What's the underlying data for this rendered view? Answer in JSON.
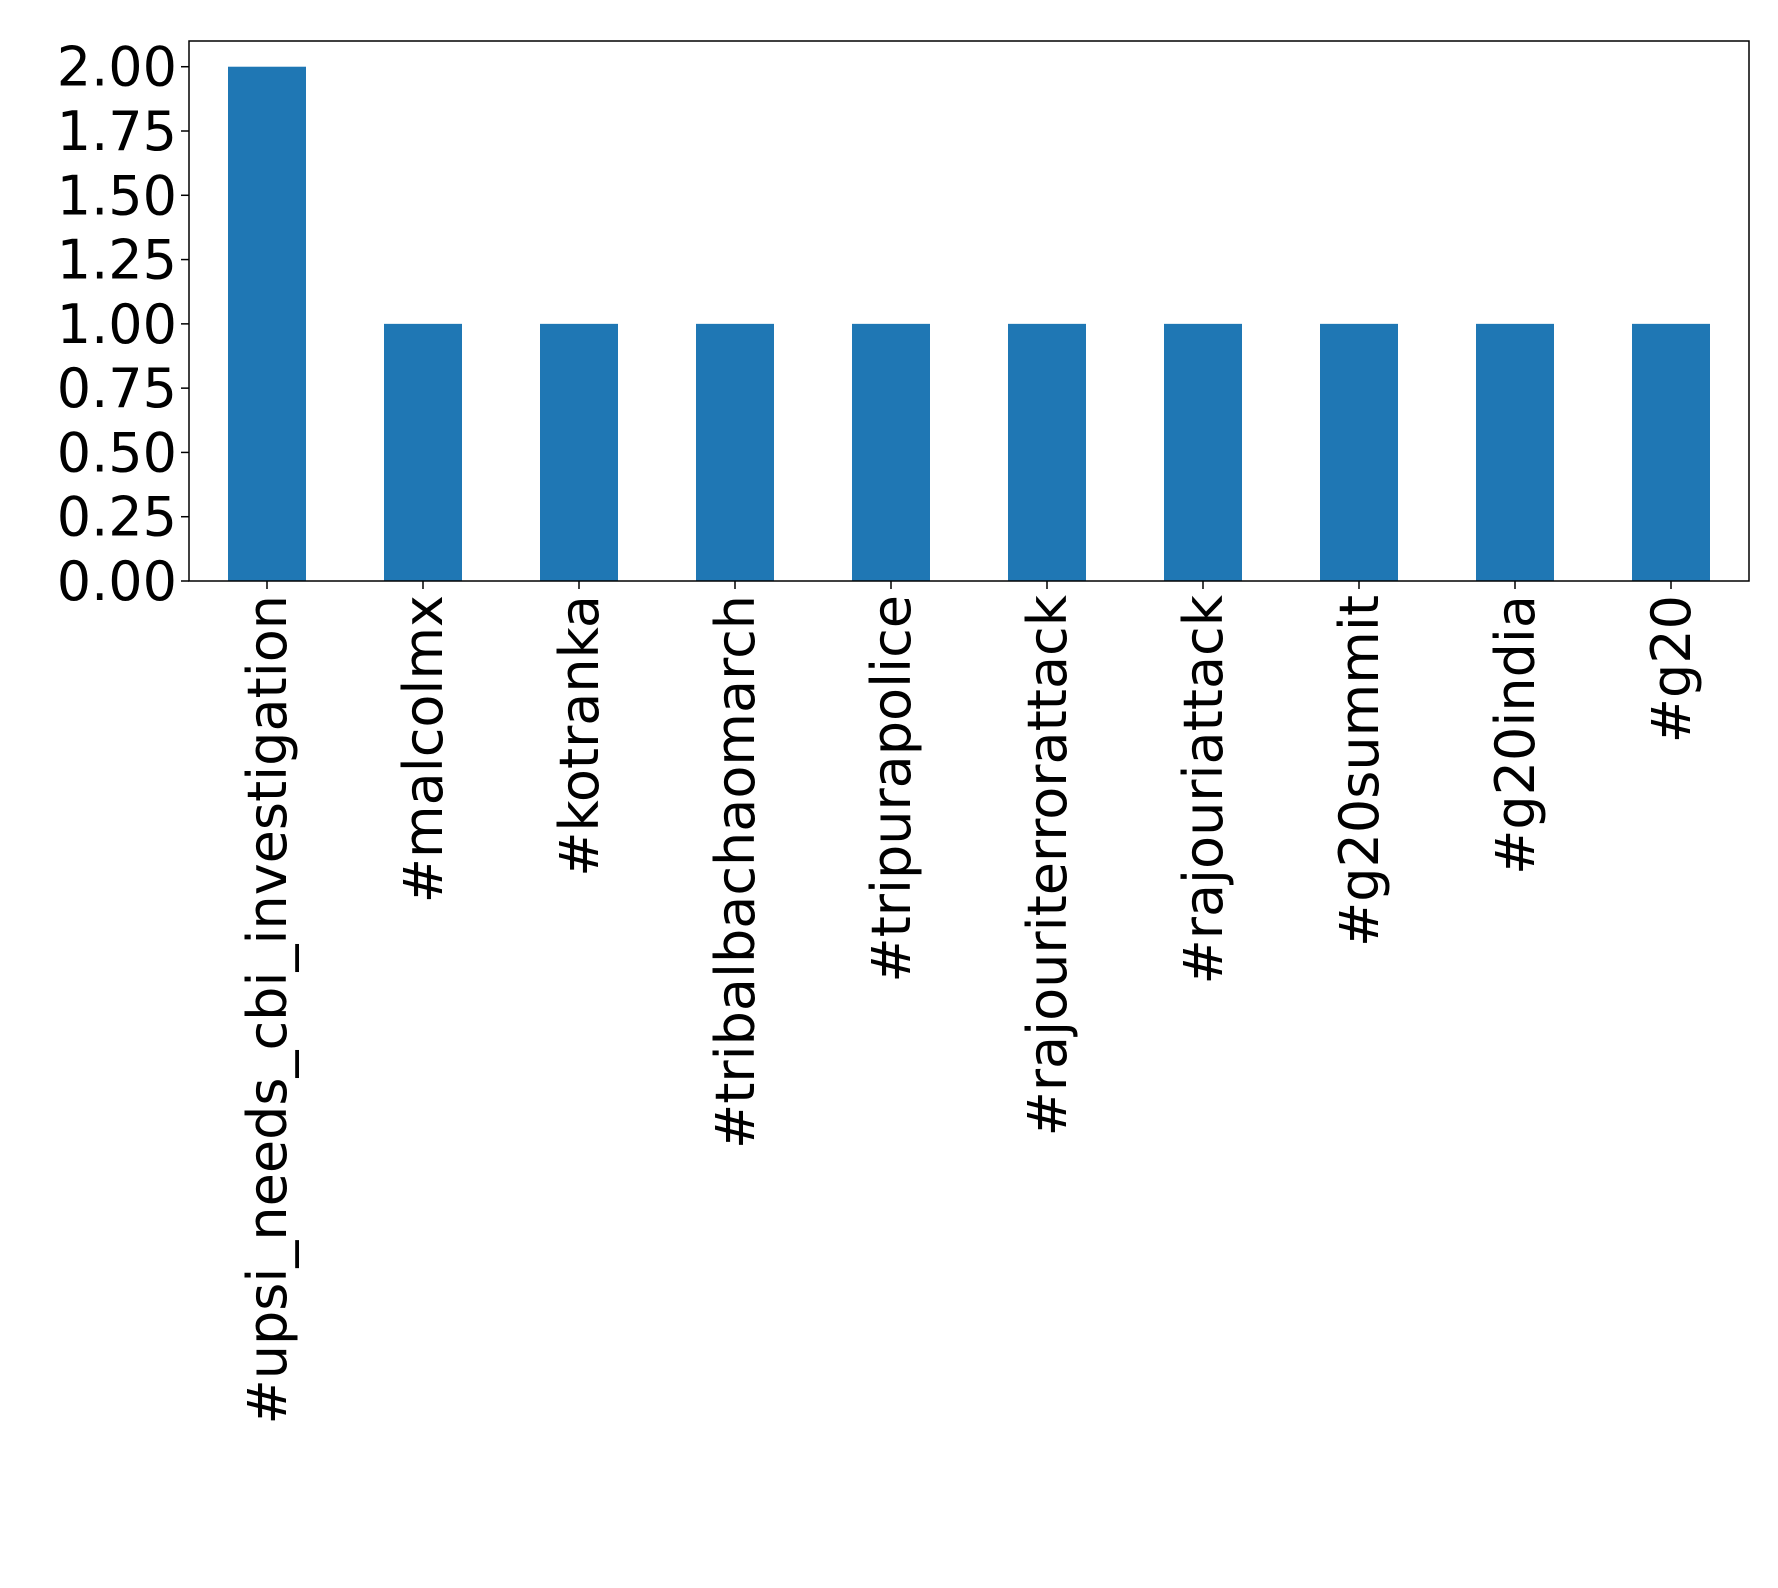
{
  "chart_data": {
    "type": "bar",
    "categories": [
      "#upsi_needs_cbi_investigation",
      "#malcolmx",
      "#kotranka",
      "#tribalbachaomarch",
      "#tripurapolice",
      "#rajouriterrorattack",
      "#rajouriattack",
      "#g20summit",
      "#g20india",
      "#g20"
    ],
    "values": [
      2,
      1,
      1,
      1,
      1,
      1,
      1,
      1,
      1,
      1
    ],
    "color": "#1f77b4",
    "ylim": [
      0,
      2.1
    ],
    "yticks": [
      {
        "value": 0,
        "label": "0.00"
      },
      {
        "value": 0.25,
        "label": "0.25"
      },
      {
        "value": 0.5,
        "label": "0.50"
      },
      {
        "value": 0.75,
        "label": "0.75"
      },
      {
        "value": 1,
        "label": "1.00"
      },
      {
        "value": 1.25,
        "label": "1.25"
      },
      {
        "value": 1.5,
        "label": "1.50"
      },
      {
        "value": 1.75,
        "label": "1.75"
      },
      {
        "value": 2,
        "label": "2.00"
      }
    ],
    "grid": false
  }
}
